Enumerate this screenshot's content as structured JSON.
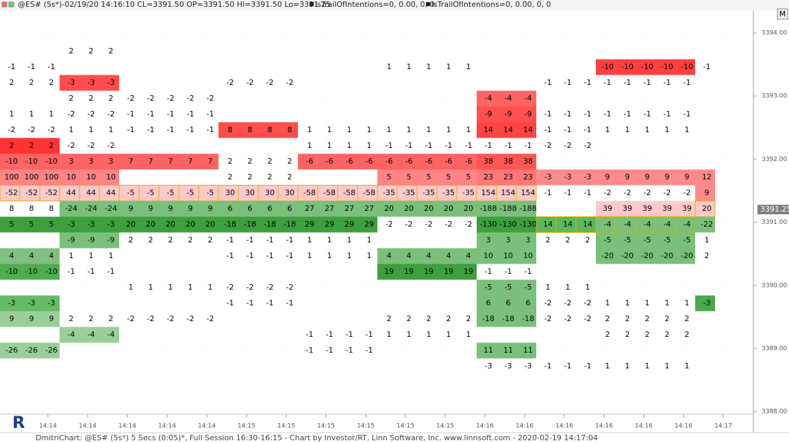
{
  "header": {
    "symbol": "@ES# (5s*)-02/19/20 14:16:10 CL=3391.50 OP=3391.50 Hi=3391.50 Lo=3391.25",
    "indicators": [
      "lsTrailOfIntentions=0, 0.00, 0, 0",
      "lsTrailOfIntentions=0, 0.00, 0, 0"
    ],
    "button": "M"
  },
  "price_axis": {
    "labels": [
      "3394.00",
      "3393.00",
      "3392.00",
      "3391.00",
      "3390.00",
      "3389.00",
      "3388.00"
    ],
    "current": "3391.25"
  },
  "time_axis": {
    "labels": [
      "14:14",
      "14:14",
      "14:14",
      "14:14",
      "14:14",
      "14:15",
      "14:15",
      "14:15",
      "14:15",
      "14:15",
      "14:15",
      "14:16",
      "14:16",
      "14:16",
      "14:16",
      "14:16",
      "14:16",
      "14:17"
    ]
  },
  "groups": [
    {
      "columns": 3,
      "cells": [
        null,
        -1,
        2,
        null,
        1,
        -2,
        {
          "value": 2,
          "fill": "#ff3333"
        },
        {
          "value": -10,
          "fill": "#ff6363"
        },
        {
          "value": 100,
          "fill": "#ff8585"
        },
        {
          "value": -52,
          "fill": "#ffc9c9",
          "outline": true
        },
        8,
        {
          "value": 5,
          "fill": "#3d9f3d"
        },
        null,
        {
          "value": 4,
          "fill": "#80c080"
        },
        {
          "value": -10,
          "fill": "#4caf4c"
        },
        null,
        {
          "value": -3,
          "fill": "#66bb66"
        },
        {
          "value": 9,
          "fill": "#99d099"
        },
        null,
        {
          "value": -26,
          "fill": "#99d099"
        },
        null
      ]
    },
    {
      "columns": 3,
      "cells": [
        2,
        null,
        {
          "value": -3,
          "fill": "#ff4d4d"
        },
        2,
        -2,
        1,
        -2,
        {
          "value": 3,
          "fill": "#ff6363"
        },
        {
          "value": 10,
          "fill": "#ff8585"
        },
        {
          "value": 44,
          "fill": "#ffc9c9",
          "outline": true
        },
        {
          "value": -24,
          "fill": "#7ac07a"
        },
        {
          "value": -3,
          "fill": "#3d9f3d"
        },
        {
          "value": -9,
          "fill": "#7ac07a"
        },
        1,
        -1,
        null,
        null,
        2,
        {
          "value": -4,
          "fill": "#99d099"
        },
        null,
        null
      ]
    },
    {
      "columns": 5,
      "cells": [
        null,
        null,
        null,
        -2,
        -1,
        -1,
        null,
        {
          "value": 7,
          "fill": "#ff6363"
        },
        null,
        {
          "value": -5,
          "fill": "#ffc9c9",
          "outline": true
        },
        {
          "value": 9,
          "fill": "#7ac07a"
        },
        {
          "value": 20,
          "fill": "#3d9f3d"
        },
        2,
        null,
        null,
        1,
        null,
        -2,
        null,
        null,
        null
      ]
    },
    {
      "columns": 4,
      "cells": [
        null,
        null,
        -2,
        null,
        null,
        {
          "value": 8,
          "fill": "#ff4d4d"
        },
        null,
        2,
        2,
        {
          "value": 30,
          "fill": "#ffc9c9",
          "outline": true
        },
        {
          "value": 6,
          "fill": "#7ac07a"
        },
        {
          "value": -18,
          "fill": "#3d9f3d"
        },
        -1,
        -1,
        null,
        -2,
        -1,
        null,
        null,
        null,
        null
      ]
    },
    {
      "columns": 4,
      "cells": [
        null,
        null,
        null,
        null,
        null,
        1,
        1,
        {
          "value": -6,
          "fill": "#ff6363"
        },
        null,
        {
          "value": -58,
          "fill": "#ffc9c9",
          "outline": true
        },
        {
          "value": 27,
          "fill": "#7ac07a"
        },
        {
          "value": 29,
          "fill": "#3d9f3d"
        },
        1,
        1,
        null,
        null,
        null,
        null,
        -1,
        -1,
        null
      ]
    },
    {
      "columns": 5,
      "cells": [
        null,
        1,
        null,
        null,
        null,
        1,
        -1,
        {
          "value": -6,
          "fill": "#ff6363"
        },
        {
          "value": 5,
          "fill": "#ff8585"
        },
        {
          "value": -35,
          "fill": "#ffc9c9",
          "outline": true
        },
        {
          "value": 20,
          "fill": "#7ac07a"
        },
        -2,
        null,
        {
          "value": 4,
          "fill": "#7ac07a"
        },
        {
          "value": 19,
          "fill": "#3d9f3d"
        },
        null,
        null,
        2,
        1,
        null,
        null
      ]
    },
    {
      "columns": 3,
      "cells": [
        null,
        null,
        null,
        {
          "value": -4,
          "fill": "#ff6363"
        },
        {
          "value": -9,
          "fill": "#ff5050"
        },
        {
          "value": 14,
          "fill": "#ff4444"
        },
        -1,
        {
          "value": 38,
          "fill": "#ff5555"
        },
        {
          "value": 23,
          "fill": "#ff7777"
        },
        {
          "value": 154,
          "fill": "#ffc9c9",
          "outline": true
        },
        {
          "value": -188,
          "fill": "#7ac07a"
        },
        {
          "value": -130,
          "fill": "#3d9f3d"
        },
        {
          "value": 3,
          "fill": "#7ac07a"
        },
        {
          "value": 10,
          "fill": "#7ac07a"
        },
        -1,
        {
          "value": -5,
          "fill": "#7ac07a"
        },
        {
          "value": 6,
          "fill": "#7ac07a"
        },
        {
          "value": -18,
          "fill": "#7ac07a"
        },
        null,
        {
          "value": 11,
          "fill": "#7ac07a"
        },
        -3
      ]
    },
    {
      "columns": 3,
      "cells": [
        null,
        null,
        -1,
        null,
        -1,
        -1,
        -2,
        null,
        {
          "value": -3,
          "fill": "#ff8a8a"
        },
        -1,
        null,
        {
          "value": 14,
          "fill": "#5cb85c",
          "outline": true
        },
        2,
        null,
        null,
        1,
        -2,
        -2,
        null,
        null,
        -1
      ]
    },
    {
      "columns": 5,
      "cells": [
        null,
        {
          "value": -10,
          "fill": "#ff4040"
        },
        -1,
        null,
        -1,
        1,
        null,
        null,
        {
          "value": 9,
          "fill": "#ff8a8a"
        },
        -2,
        {
          "value": 39,
          "fill": "#ffc9c9"
        },
        {
          "value": -4,
          "fill": "#7ac07a",
          "outline": true
        },
        {
          "value": -5,
          "fill": "#7ac07a"
        },
        {
          "value": -20,
          "fill": "#7ac07a"
        },
        null,
        null,
        1,
        2,
        2,
        null,
        1
      ]
    },
    {
      "columns": 1,
      "cells": [
        null,
        -1,
        null,
        null,
        null,
        null,
        null,
        null,
        {
          "value": 12,
          "fill": "#ff8a8a"
        },
        {
          "value": 9,
          "fill": "#ff8a8a"
        },
        {
          "value": 20,
          "fill": "#ffc9c9",
          "outline": true
        },
        {
          "value": -22,
          "fill": "#7ac07a"
        },
        1,
        2,
        null,
        null,
        {
          "value": -3,
          "fill": "#4aaa4a"
        },
        null,
        null,
        null,
        null
      ]
    }
  ],
  "footer": "DmitriChart: @ES# (5s*) 5 Secs (0:05)*, Full Session 16:30-16:15 - Chart by Investor/RT, Linn Software, Inc. www.linnsoft.com - 2020-02-19 14:17:04"
}
